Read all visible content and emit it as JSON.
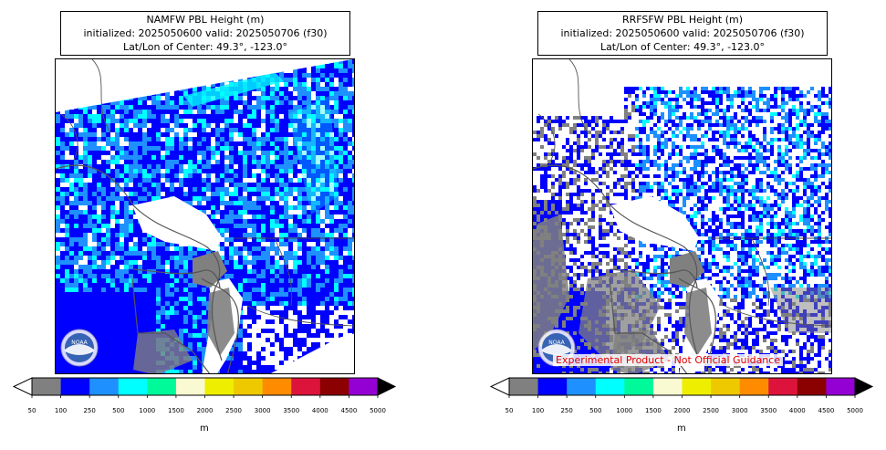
{
  "panels": [
    {
      "title": "NAMFW PBL Height (m)",
      "init_line": "initialized: 2025050600 valid: 2025050706 (f30)",
      "center_line": "Lat/Lon of Center: 49.3°, -123.0°",
      "logo": "noaa-logo"
    },
    {
      "title": "RRFSFW PBL Height (m)",
      "init_line": "initialized: 2025050600 valid: 2025050706 (f30)",
      "center_line": "Lat/Lon of Center: 49.3°, -123.0°",
      "logo": "noaa-logo",
      "watermark": "Experimental Product - Not Official Guidance"
    }
  ],
  "colorbar": {
    "ticks": [
      "50",
      "100",
      "250",
      "500",
      "1000",
      "1500",
      "2000",
      "2500",
      "3000",
      "3500",
      "4000",
      "4500",
      "5000"
    ],
    "colors": [
      "#808080",
      "#0000ff",
      "#1e90ff",
      "#00ffff",
      "#00fa9a",
      "#fafad2",
      "#eeee00",
      "#eec900",
      "#ff8c00",
      "#dc143c",
      "#8b0000",
      "#9400d3"
    ],
    "under_color": "#ffffff",
    "over_color": "#000000",
    "units": "m"
  },
  "colors": {
    "land_gray": "#808080",
    "water_white": "#ffffff",
    "low_blue": "#0000ff",
    "mid_blue": "#1e90ff",
    "high_cyan": "#00ffff",
    "coastline": "#555555",
    "watermark_red": "#e00000"
  }
}
